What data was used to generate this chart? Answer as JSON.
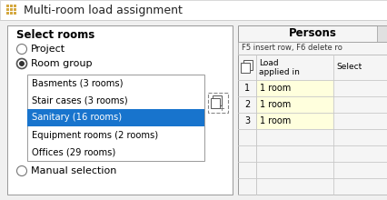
{
  "title": "Multi-room load assignment",
  "title_icon_color": "#D4A840",
  "bg_color": "#F0F0F0",
  "panel_bg": "#FFFFFF",
  "select_rooms_label": "Select rooms",
  "radio_items": [
    "Project",
    "Room group",
    "Manual selection"
  ],
  "radio_selected": 1,
  "list_items": [
    "Basments (3 rooms)",
    "Stair cases (3 rooms)",
    "Sanitary (16 rooms)",
    "Equipment rooms (2 rooms)",
    "Offices (29 rooms)"
  ],
  "list_selected": 2,
  "list_selected_bg": "#1874CD",
  "list_selected_fg": "#FFFFFF",
  "list_fg": "#000000",
  "list_bg": "#FFFFFF",
  "right_panel_title": "Persons",
  "right_panel_hint": "F5 insert row, F6 delete ro",
  "right_panel_bg": "#F0F0F0",
  "table_col1a": "Load",
  "table_col1b": "applied in",
  "table_col2": "Select",
  "table_rows": [
    {
      "num": "1",
      "val": "1 room"
    },
    {
      "num": "2",
      "val": "1 room"
    },
    {
      "num": "3",
      "val": "1 room"
    }
  ],
  "table_row_bg": "#FFFFDD",
  "grid_color": "#C8C8C8",
  "border_color": "#999999",
  "title_bar_bg": "#FFFFFF"
}
